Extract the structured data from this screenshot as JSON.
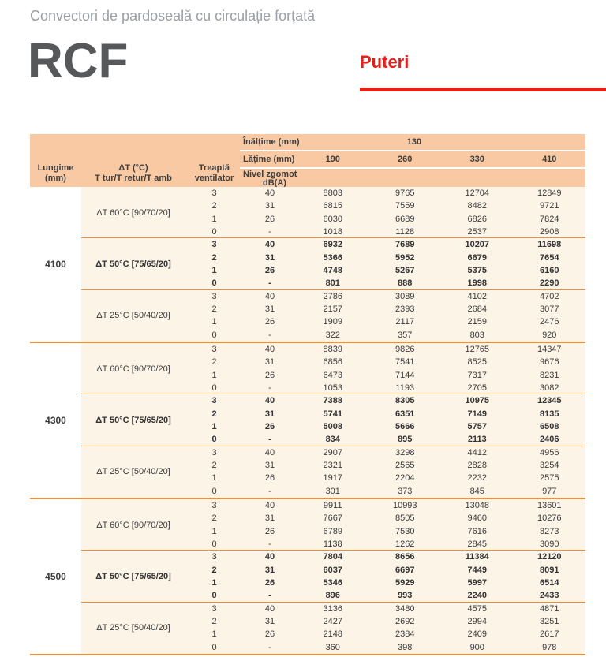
{
  "page": {
    "subtitle": "Convectori de pardoseală cu circulație forțată",
    "product": "RCF",
    "section": "Puteri"
  },
  "colors": {
    "accent_red": "#e32119",
    "header_bg": "#f8c9a2",
    "row_bg": "#fdf4e8",
    "divider_orange": "#eb8f3f",
    "subtitle_gray": "#9aa0a5",
    "product_gray": "#57585a",
    "text": "#3c3c3c"
  },
  "table": {
    "header": {
      "height_label": "Înălțime (mm)",
      "height_value": "130",
      "width_label": "Lățime (mm)",
      "width_values": [
        "190",
        "260",
        "330",
        "410"
      ],
      "col_lungime_1": "Lungime",
      "col_lungime_2": "(mm)",
      "col_dt_1": "ΔT (°C)",
      "col_dt_2": "T tur/T retur/T amb",
      "col_treapta_1": "Treaptă",
      "col_treapta_2": "ventilator",
      "col_nivel_1": "Nivel zgomot",
      "col_nivel_2": "dB(A)"
    },
    "blocks": [
      {
        "length": "4100",
        "groups": [
          {
            "dt": "ΔT 60°C [90/70/20]",
            "bold": false,
            "rows": [
              {
                "step": "3",
                "noise": "40",
                "values": [
                  "8803",
                  "9765",
                  "12704",
                  "12849"
                ]
              },
              {
                "step": "2",
                "noise": "31",
                "values": [
                  "6815",
                  "7559",
                  "8482",
                  "9721"
                ]
              },
              {
                "step": "1",
                "noise": "26",
                "values": [
                  "6030",
                  "6689",
                  "6826",
                  "7824"
                ]
              },
              {
                "step": "0",
                "noise": "-",
                "values": [
                  "1018",
                  "1128",
                  "2537",
                  "2908"
                ]
              }
            ]
          },
          {
            "dt": "ΔT 50°C [75/65/20]",
            "bold": true,
            "rows": [
              {
                "step": "3",
                "noise": "40",
                "values": [
                  "6932",
                  "7689",
                  "10207",
                  "11698"
                ]
              },
              {
                "step": "2",
                "noise": "31",
                "values": [
                  "5366",
                  "5952",
                  "6679",
                  "7654"
                ]
              },
              {
                "step": "1",
                "noise": "26",
                "values": [
                  "4748",
                  "5267",
                  "5375",
                  "6160"
                ]
              },
              {
                "step": "0",
                "noise": "-",
                "values": [
                  "801",
                  "888",
                  "1998",
                  "2290"
                ]
              }
            ]
          },
          {
            "dt": "ΔT 25°C [50/40/20]",
            "bold": false,
            "rows": [
              {
                "step": "3",
                "noise": "40",
                "values": [
                  "2786",
                  "3089",
                  "4102",
                  "4702"
                ]
              },
              {
                "step": "2",
                "noise": "31",
                "values": [
                  "2157",
                  "2393",
                  "2684",
                  "3077"
                ]
              },
              {
                "step": "1",
                "noise": "26",
                "values": [
                  "1909",
                  "2117",
                  "2159",
                  "2476"
                ]
              },
              {
                "step": "0",
                "noise": "-",
                "values": [
                  "322",
                  "357",
                  "803",
                  "920"
                ]
              }
            ]
          }
        ]
      },
      {
        "length": "4300",
        "groups": [
          {
            "dt": "ΔT 60°C [90/70/20]",
            "bold": false,
            "rows": [
              {
                "step": "3",
                "noise": "40",
                "values": [
                  "8839",
                  "9826",
                  "12765",
                  "14347"
                ]
              },
              {
                "step": "2",
                "noise": "31",
                "values": [
                  "6856",
                  "7541",
                  "8525",
                  "9676"
                ]
              },
              {
                "step": "1",
                "noise": "26",
                "values": [
                  "6473",
                  "7144",
                  "7317",
                  "8231"
                ]
              },
              {
                "step": "0",
                "noise": "-",
                "values": [
                  "1053",
                  "1193",
                  "2705",
                  "3082"
                ]
              }
            ]
          },
          {
            "dt": "ΔT 50°C [75/65/20]",
            "bold": true,
            "rows": [
              {
                "step": "3",
                "noise": "40",
                "values": [
                  "7388",
                  "8305",
                  "10975",
                  "12345"
                ]
              },
              {
                "step": "2",
                "noise": "31",
                "values": [
                  "5741",
                  "6351",
                  "7149",
                  "8135"
                ]
              },
              {
                "step": "1",
                "noise": "26",
                "values": [
                  "5008",
                  "5666",
                  "5757",
                  "6508"
                ]
              },
              {
                "step": "0",
                "noise": "-",
                "values": [
                  "834",
                  "895",
                  "2113",
                  "2406"
                ]
              }
            ]
          },
          {
            "dt": "ΔT 25°C [50/40/20]",
            "bold": false,
            "rows": [
              {
                "step": "3",
                "noise": "40",
                "values": [
                  "2907",
                  "3298",
                  "4412",
                  "4956"
                ]
              },
              {
                "step": "2",
                "noise": "31",
                "values": [
                  "2321",
                  "2565",
                  "2828",
                  "3254"
                ]
              },
              {
                "step": "1",
                "noise": "26",
                "values": [
                  "1917",
                  "2204",
                  "2232",
                  "2575"
                ]
              },
              {
                "step": "0",
                "noise": "-",
                "values": [
                  "301",
                  "373",
                  "845",
                  "977"
                ]
              }
            ]
          }
        ]
      },
      {
        "length": "4500",
        "groups": [
          {
            "dt": "ΔT 60°C [90/70/20]",
            "bold": false,
            "rows": [
              {
                "step": "3",
                "noise": "40",
                "values": [
                  "9911",
                  "10993",
                  "13048",
                  "13601"
                ]
              },
              {
                "step": "2",
                "noise": "31",
                "values": [
                  "7667",
                  "8505",
                  "9460",
                  "10276"
                ]
              },
              {
                "step": "1",
                "noise": "26",
                "values": [
                  "6789",
                  "7530",
                  "7616",
                  "8273"
                ]
              },
              {
                "step": "0",
                "noise": "-",
                "values": [
                  "1138",
                  "1262",
                  "2845",
                  "3090"
                ]
              }
            ]
          },
          {
            "dt": "ΔT 50°C [75/65/20]",
            "bold": true,
            "rows": [
              {
                "step": "3",
                "noise": "40",
                "values": [
                  "7804",
                  "8656",
                  "11384",
                  "12120"
                ]
              },
              {
                "step": "2",
                "noise": "31",
                "values": [
                  "6037",
                  "6697",
                  "7449",
                  "8091"
                ]
              },
              {
                "step": "1",
                "noise": "26",
                "values": [
                  "5346",
                  "5929",
                  "5997",
                  "6514"
                ]
              },
              {
                "step": "0",
                "noise": "-",
                "values": [
                  "896",
                  "993",
                  "2240",
                  "2433"
                ]
              }
            ]
          },
          {
            "dt": "ΔT 25°C [50/40/20]",
            "bold": false,
            "rows": [
              {
                "step": "3",
                "noise": "40",
                "values": [
                  "3136",
                  "3480",
                  "4575",
                  "4871"
                ]
              },
              {
                "step": "2",
                "noise": "31",
                "values": [
                  "2427",
                  "2692",
                  "2994",
                  "3251"
                ]
              },
              {
                "step": "1",
                "noise": "26",
                "values": [
                  "2148",
                  "2384",
                  "2409",
                  "2617"
                ]
              },
              {
                "step": "0",
                "noise": "-",
                "values": [
                  "360",
                  "398",
                  "900",
                  "978"
                ]
              }
            ]
          }
        ]
      }
    ]
  }
}
